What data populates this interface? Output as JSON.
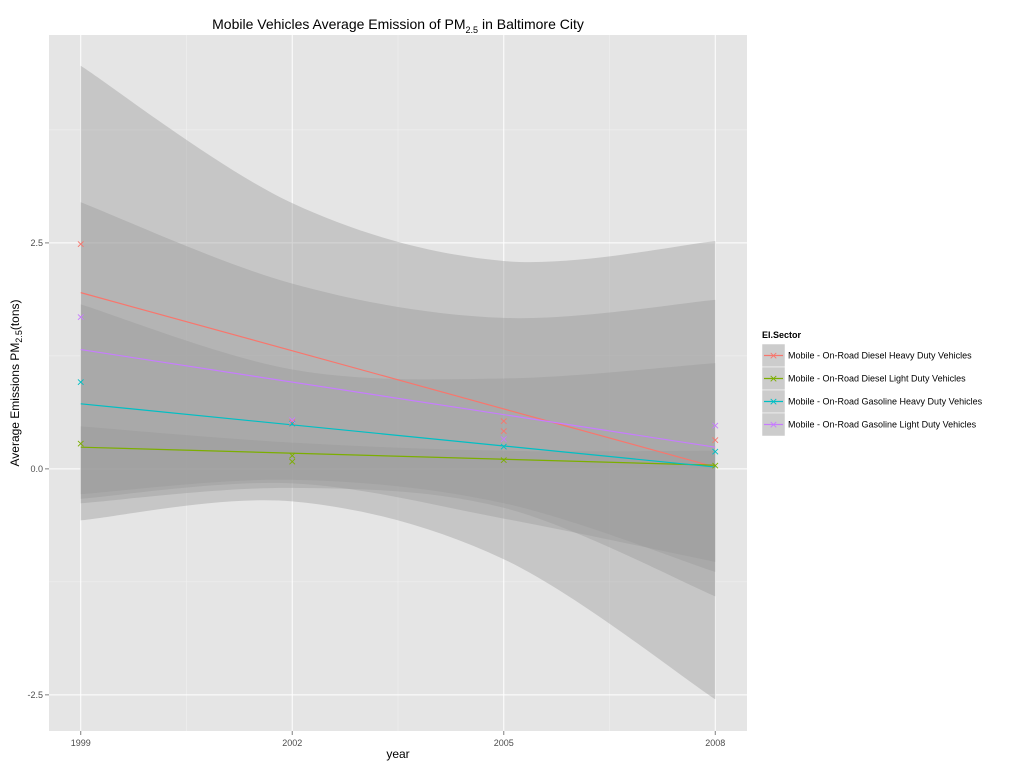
{
  "chart_data": {
    "type": "scatter",
    "title": {
      "prefix": "Mobile Vehicles Average Emission of PM",
      "subscript": "2.5",
      "suffix": " in Baltimore City"
    },
    "xlabel": "year",
    "ylabel": {
      "prefix": "Average Emissions PM",
      "subscript": "2.5",
      "suffix": "(tons)"
    },
    "x_ticks": [
      1999,
      2002,
      2005,
      2008
    ],
    "y_ticks": [
      -2.5,
      0.0,
      2.5
    ],
    "y_tick_labels": [
      "-2.5",
      "0.0",
      "2.5"
    ],
    "xlim": [
      1998.55,
      2008.45
    ],
    "ylim": [
      -2.9,
      4.8
    ],
    "grid": true,
    "legend": {
      "title": "EI.Sector",
      "position": "right"
    },
    "point_marker": "×",
    "series": [
      {
        "name": "Mobile - On-Road Diesel Heavy Duty Vehicles",
        "color": "#F8766D",
        "points": [
          [
            1999,
            2.49
          ],
          [
            2002,
            0.52
          ],
          [
            2005,
            0.53
          ],
          [
            2005,
            0.42
          ],
          [
            2008,
            0.32
          ]
        ],
        "fit": [
          [
            1999,
            1.95
          ],
          [
            2008,
            0.02
          ]
        ]
      },
      {
        "name": "Mobile - On-Road Diesel Light Duty Vehicles",
        "color": "#7CAE00",
        "points": [
          [
            1999,
            0.28
          ],
          [
            2002,
            0.15
          ],
          [
            2002,
            0.08
          ],
          [
            2005,
            0.1
          ],
          [
            2008,
            0.04
          ]
        ],
        "fit": [
          [
            1999,
            0.24
          ],
          [
            2008,
            0.04
          ]
        ]
      },
      {
        "name": "Mobile - On-Road Gasoline Heavy Duty Vehicles",
        "color": "#00BFC4",
        "points": [
          [
            1999,
            0.96
          ],
          [
            2002,
            0.5
          ],
          [
            2005,
            0.25
          ],
          [
            2008,
            0.19
          ]
        ],
        "fit": [
          [
            1999,
            0.72
          ],
          [
            2008,
            0.02
          ]
        ]
      },
      {
        "name": "Mobile - On-Road Gasoline Light Duty Vehicles",
        "color": "#C77CFF",
        "points": [
          [
            1999,
            1.68
          ],
          [
            2002,
            0.54
          ],
          [
            2005,
            0.33
          ],
          [
            2008,
            0.48
          ]
        ],
        "fit": [
          [
            1999,
            1.32
          ],
          [
            2008,
            0.24
          ]
        ]
      }
    ],
    "confidence_bands": [
      {
        "x": [
          1999,
          2002,
          2005,
          2008
        ],
        "upper": [
          2.95,
          2.05,
          1.67,
          1.87
        ],
        "lower": [
          -0.33,
          -0.16,
          -0.55,
          -1.03
        ]
      },
      {
        "x": [
          1999,
          2002,
          2005,
          2008
        ],
        "upper": [
          0.47,
          0.29,
          0.2,
          0.2
        ],
        "lower": [
          -0.28,
          -0.12,
          -0.38,
          -1.14
        ]
      },
      {
        "x": [
          1999,
          2002,
          2005,
          2008
        ],
        "upper": [
          4.46,
          2.94,
          2.3,
          2.52
        ],
        "lower": [
          -0.57,
          -0.36,
          -1.0,
          -2.55
        ]
      },
      {
        "x": [
          1999,
          2002,
          2005,
          2008
        ],
        "upper": [
          1.82,
          1.1,
          1.0,
          1.17
        ],
        "lower": [
          -0.38,
          -0.21,
          -0.43,
          -1.41
        ]
      }
    ],
    "band_color": "#999999",
    "band_opacity": 0.4
  }
}
